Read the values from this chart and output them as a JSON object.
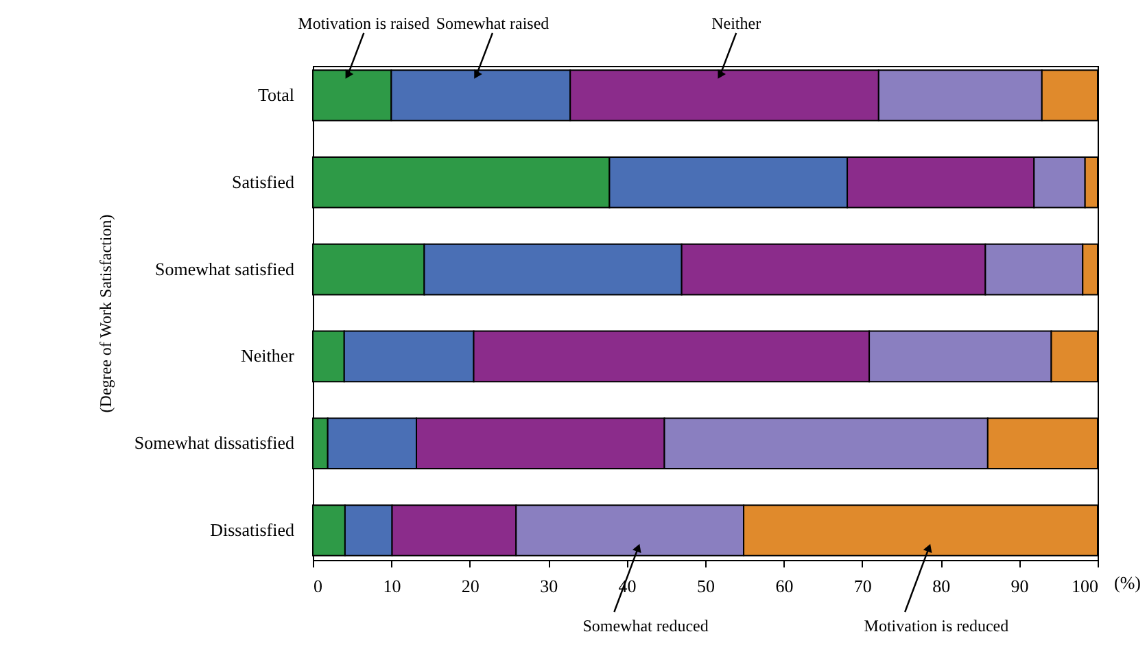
{
  "chart_data": {
    "type": "bar",
    "orientation": "horizontal",
    "stacked": true,
    "categories": [
      "Total",
      "Satisfied",
      "Somewhat satisfied",
      "Neither",
      "Somewhat dissatisfied",
      "Dissatisfied"
    ],
    "series": [
      {
        "name": "Motivation is raised",
        "color": "#2e9a47",
        "values": [
          10.0,
          37.8,
          14.2,
          4.0,
          1.9,
          4.1
        ]
      },
      {
        "name": "Somewhat raised",
        "color": "#4a6fb5",
        "values": [
          22.8,
          30.3,
          32.8,
          16.5,
          11.3,
          6.0
        ]
      },
      {
        "name": "Neither",
        "color": "#8b2c8b",
        "values": [
          39.3,
          23.8,
          38.7,
          50.4,
          31.6,
          15.8
        ]
      },
      {
        "name": "Somewhat reduced",
        "color": "#8a7fc0",
        "values": [
          20.8,
          6.5,
          12.4,
          23.2,
          41.2,
          29.0
        ]
      },
      {
        "name": "Motivation is reduced",
        "color": "#e08a2c",
        "values": [
          7.1,
          1.6,
          1.9,
          5.9,
          14.0,
          45.1
        ]
      }
    ],
    "xlim": [
      0,
      100
    ],
    "xticks": [
      0,
      10,
      20,
      30,
      40,
      50,
      60,
      70,
      80,
      90,
      100
    ],
    "xlabel": "(%)",
    "ylabel": "(Degree of Work Satisfaction)",
    "grid": false,
    "legend": false
  }
}
